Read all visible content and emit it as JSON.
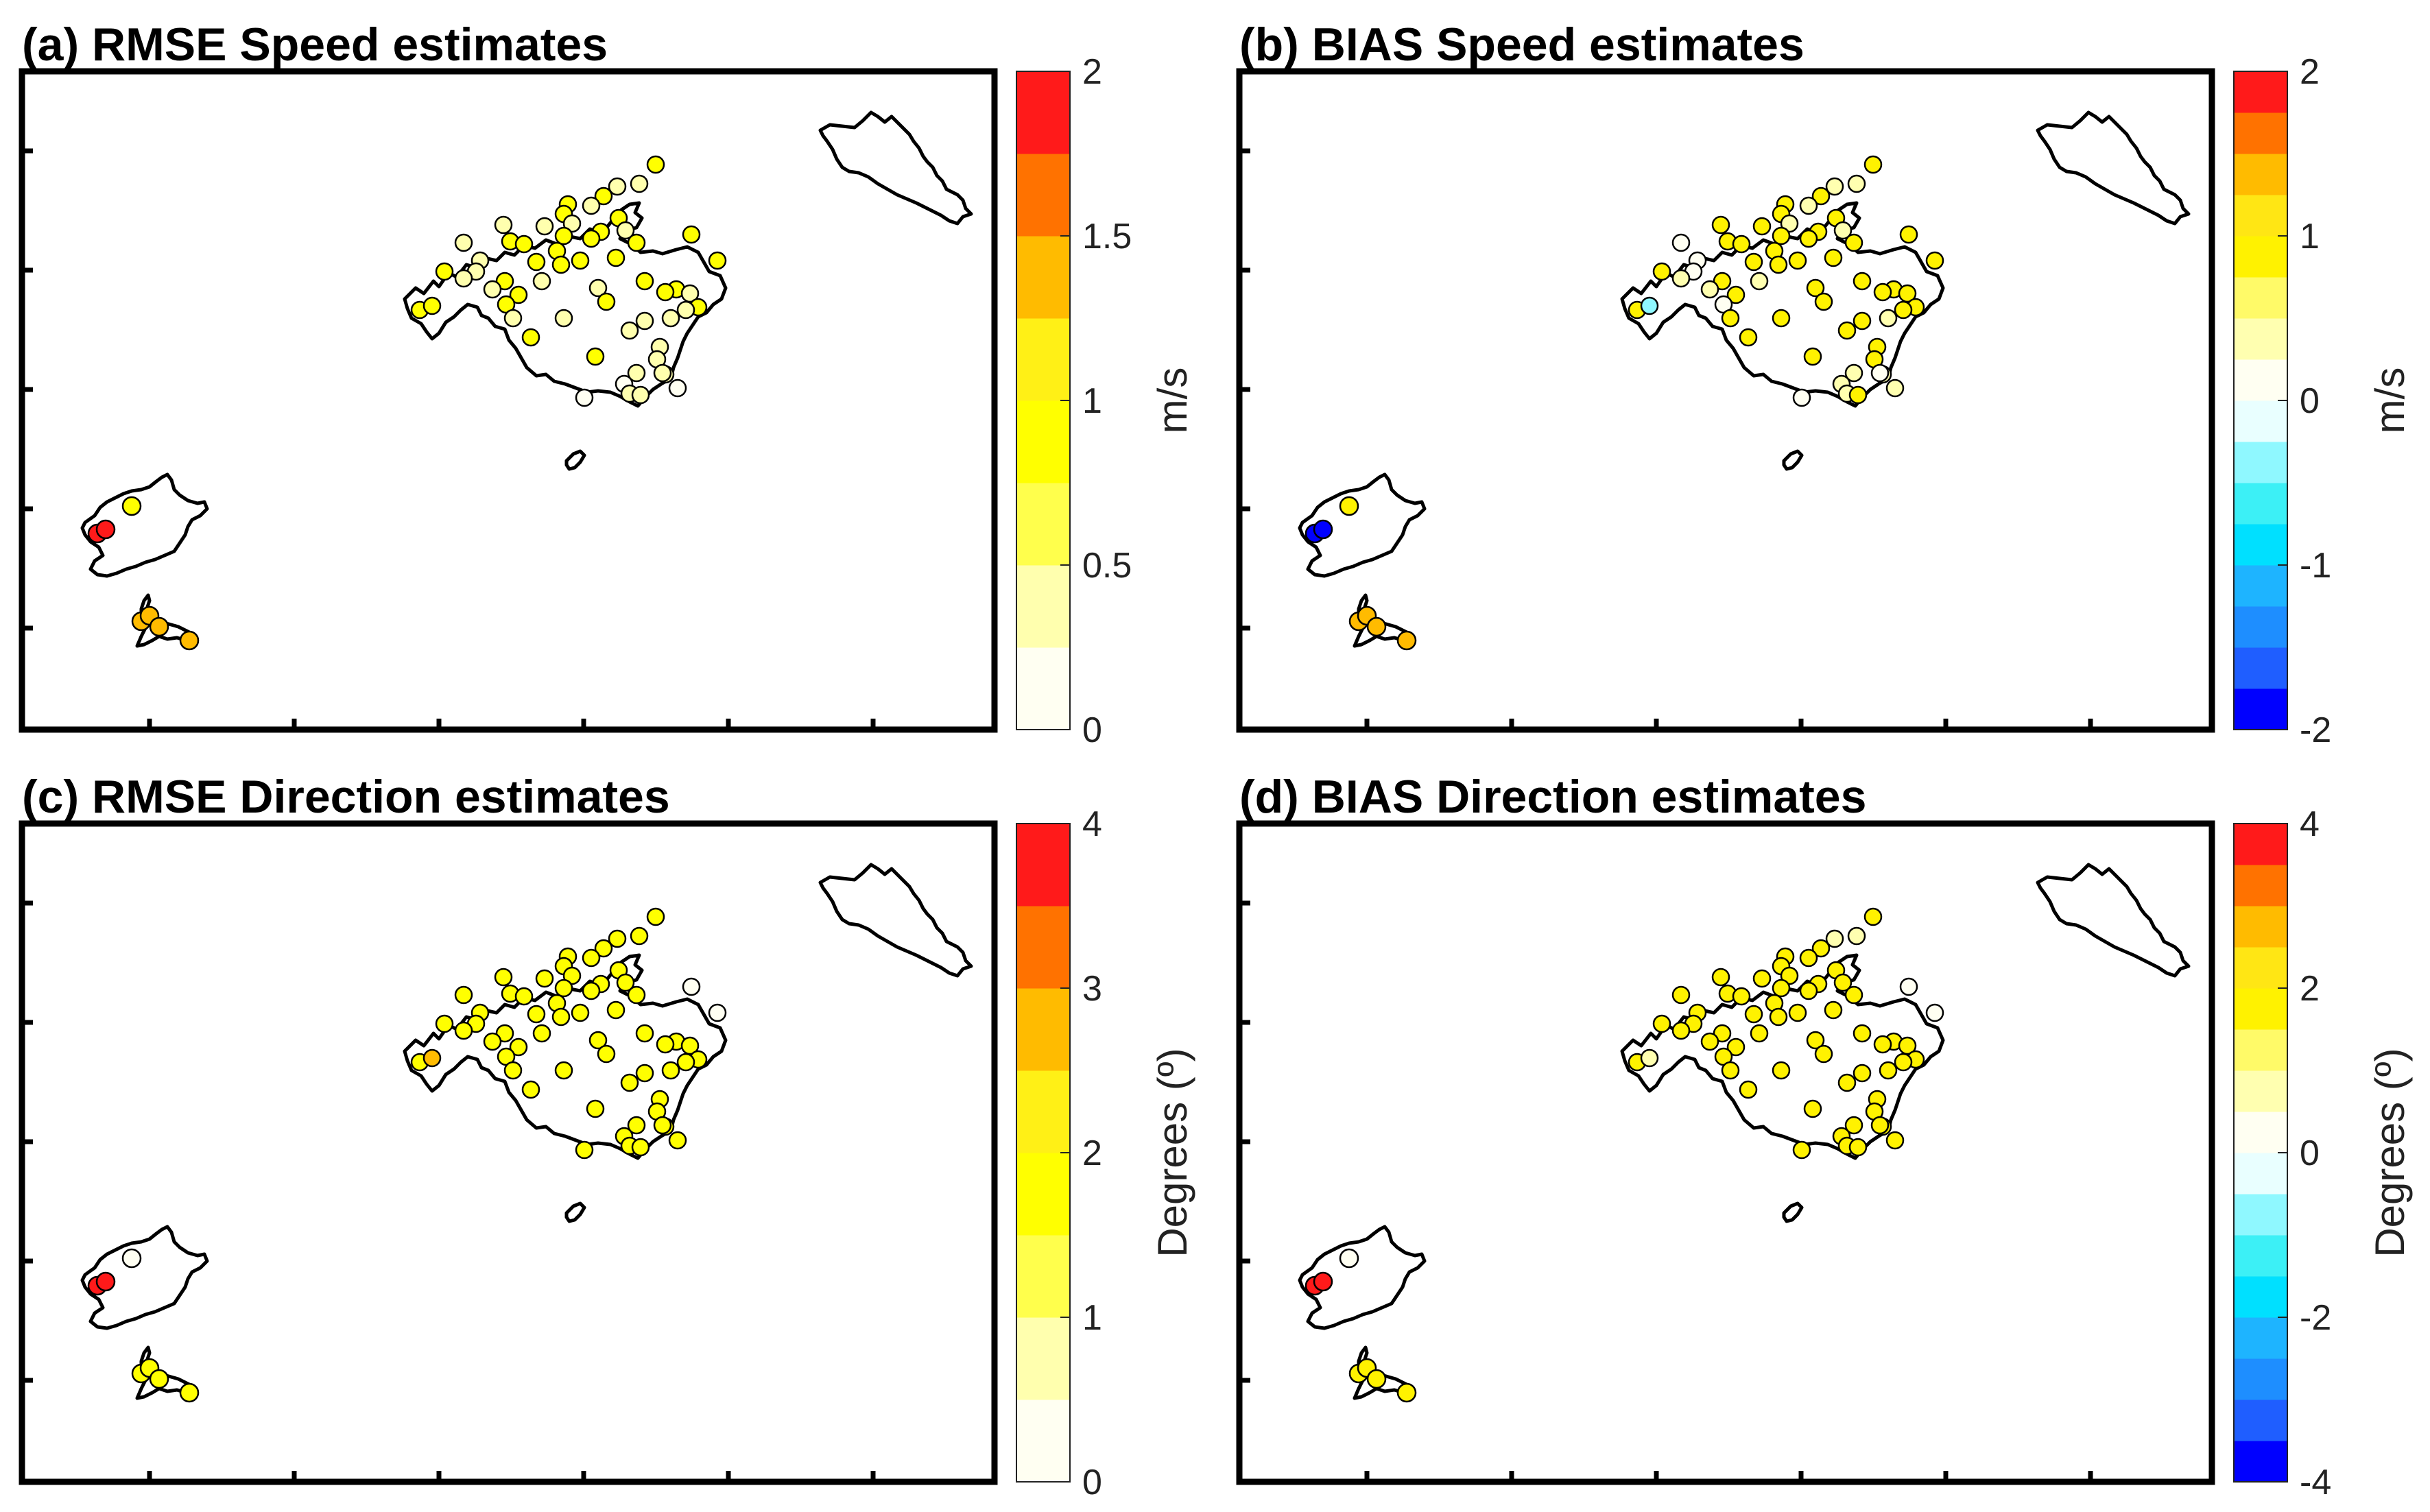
{
  "colors": {
    "sequential_levels": [
      "#fffff2",
      "#ffffae",
      "#ffff4c",
      "#ffff00",
      "#fff016",
      "#ffbb00",
      "#ff7200",
      "#ff1a1a"
    ],
    "diverging_levels": [
      "#0000ff",
      "#1f5eff",
      "#1e8eff",
      "#1eb4ff",
      "#00e0ff",
      "#3cf0f6",
      "#8ff8ff",
      "#e9ffff",
      "#fffff2",
      "#ffffb0",
      "#fffa68",
      "#fff200",
      "#ffe614",
      "#ffbb00",
      "#ff7200",
      "#ff1a1a"
    ],
    "coastline": "#000000",
    "marker_edge": "#000000"
  },
  "chart_data": [
    {
      "type": "scatter",
      "subtype": "station map with filled-contour colorbar",
      "title": "(a) RMSE Speed estimates",
      "colorbar": {
        "label": "m/s",
        "range": [
          0,
          2
        ],
        "ticks": [
          "0",
          "0.5",
          "1",
          "1.5",
          "2"
        ],
        "levels": 8,
        "scale": "sequential"
      },
      "stations": {
        "mallorca": {
          "count": 57,
          "values_approx": "0.1 - 0.9 m/s (mostly 0.6 - 0.9)"
        },
        "ibiza": [
          {
            "value": 1.9
          },
          {
            "value": 1.95
          },
          {
            "value": 0.8
          }
        ],
        "formentera": [
          {
            "value": 1.45
          },
          {
            "value": 1.4
          },
          {
            "value": 1.4
          },
          {
            "value": 1.45
          }
        ]
      }
    },
    {
      "type": "scatter",
      "subtype": "station map with filled-contour colorbar",
      "title": "(b) BIAS Speed estimates",
      "colorbar": {
        "label": "m/s",
        "range": [
          -2,
          2
        ],
        "ticks": [
          "-2",
          "-1",
          "0",
          "1",
          "2"
        ],
        "levels": 16,
        "scale": "diverging"
      },
      "stations": {
        "mallorca": {
          "count": 57,
          "values_approx": "-0.4 - 0.9 m/s (mostly 0.3 - 0.9)"
        },
        "ibiza": [
          {
            "value": -1.9
          },
          {
            "value": -1.85
          },
          {
            "value": 0.8
          }
        ],
        "formentera": [
          {
            "value": 1.4
          },
          {
            "value": 1.35
          },
          {
            "value": 1.4
          },
          {
            "value": 1.45
          }
        ]
      }
    },
    {
      "type": "scatter",
      "subtype": "station map with filled-contour colorbar",
      "title": "(c) RMSE Direction estimates",
      "colorbar": {
        "label": "Degrees (º)",
        "range": [
          0,
          4
        ],
        "ticks": [
          "0",
          "1",
          "2",
          "3",
          "4"
        ],
        "levels": 8,
        "scale": "sequential"
      },
      "stations": {
        "mallorca": {
          "count": 57,
          "values_approx": "0.1 - 2.9 º (mostly 1.5 - 2.2)"
        },
        "ibiza": [
          {
            "value": 3.8
          },
          {
            "value": 3.9
          },
          {
            "value": 0.2
          }
        ],
        "formentera": [
          {
            "value": 1.8
          },
          {
            "value": 1.6
          },
          {
            "value": 1.7
          },
          {
            "value": 1.7
          }
        ]
      }
    },
    {
      "type": "scatter",
      "subtype": "station map with filled-contour colorbar",
      "title": "(d) BIAS Direction estimates",
      "colorbar": {
        "label": "Degrees (º)",
        "range": [
          -4,
          4
        ],
        "ticks": [
          "-4",
          "-2",
          "0",
          "2",
          "4"
        ],
        "levels": 16,
        "scale": "diverging"
      },
      "stations": {
        "mallorca": {
          "count": 57,
          "values_approx": "0.1 - 2.2 º (mostly 1.5 - 2.0)"
        },
        "ibiza": [
          {
            "value": 3.8
          },
          {
            "value": 3.9
          },
          {
            "value": 0.2
          }
        ],
        "formentera": [
          {
            "value": 1.8
          },
          {
            "value": 1.6
          },
          {
            "value": 1.7
          },
          {
            "value": 1.7
          }
        ]
      }
    }
  ]
}
